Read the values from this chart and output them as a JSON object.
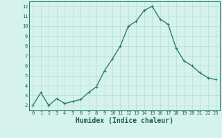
{
  "x": [
    0,
    1,
    2,
    3,
    4,
    5,
    6,
    7,
    8,
    9,
    10,
    11,
    12,
    13,
    14,
    15,
    16,
    17,
    18,
    19,
    20,
    21,
    22,
    23
  ],
  "y": [
    2.0,
    3.3,
    2.0,
    2.7,
    2.2,
    2.4,
    2.6,
    3.3,
    3.9,
    5.5,
    6.7,
    8.0,
    10.0,
    10.5,
    11.6,
    12.0,
    10.7,
    10.2,
    7.8,
    6.5,
    6.0,
    5.3,
    4.8,
    4.6
  ],
  "line_color": "#2d7d6e",
  "marker": "+",
  "marker_size": 3,
  "linewidth": 1.0,
  "background_color": "#d5f2ec",
  "grid_color": "#b8ddd6",
  "xlabel": "Humidex (Indice chaleur)",
  "xlabel_fontsize": 7,
  "tick_fontsize": 5,
  "ylabel_ticks": [
    2,
    3,
    4,
    5,
    6,
    7,
    8,
    9,
    10,
    11,
    12
  ],
  "xlim": [
    -0.5,
    23.5
  ],
  "ylim": [
    1.5,
    12.5
  ]
}
